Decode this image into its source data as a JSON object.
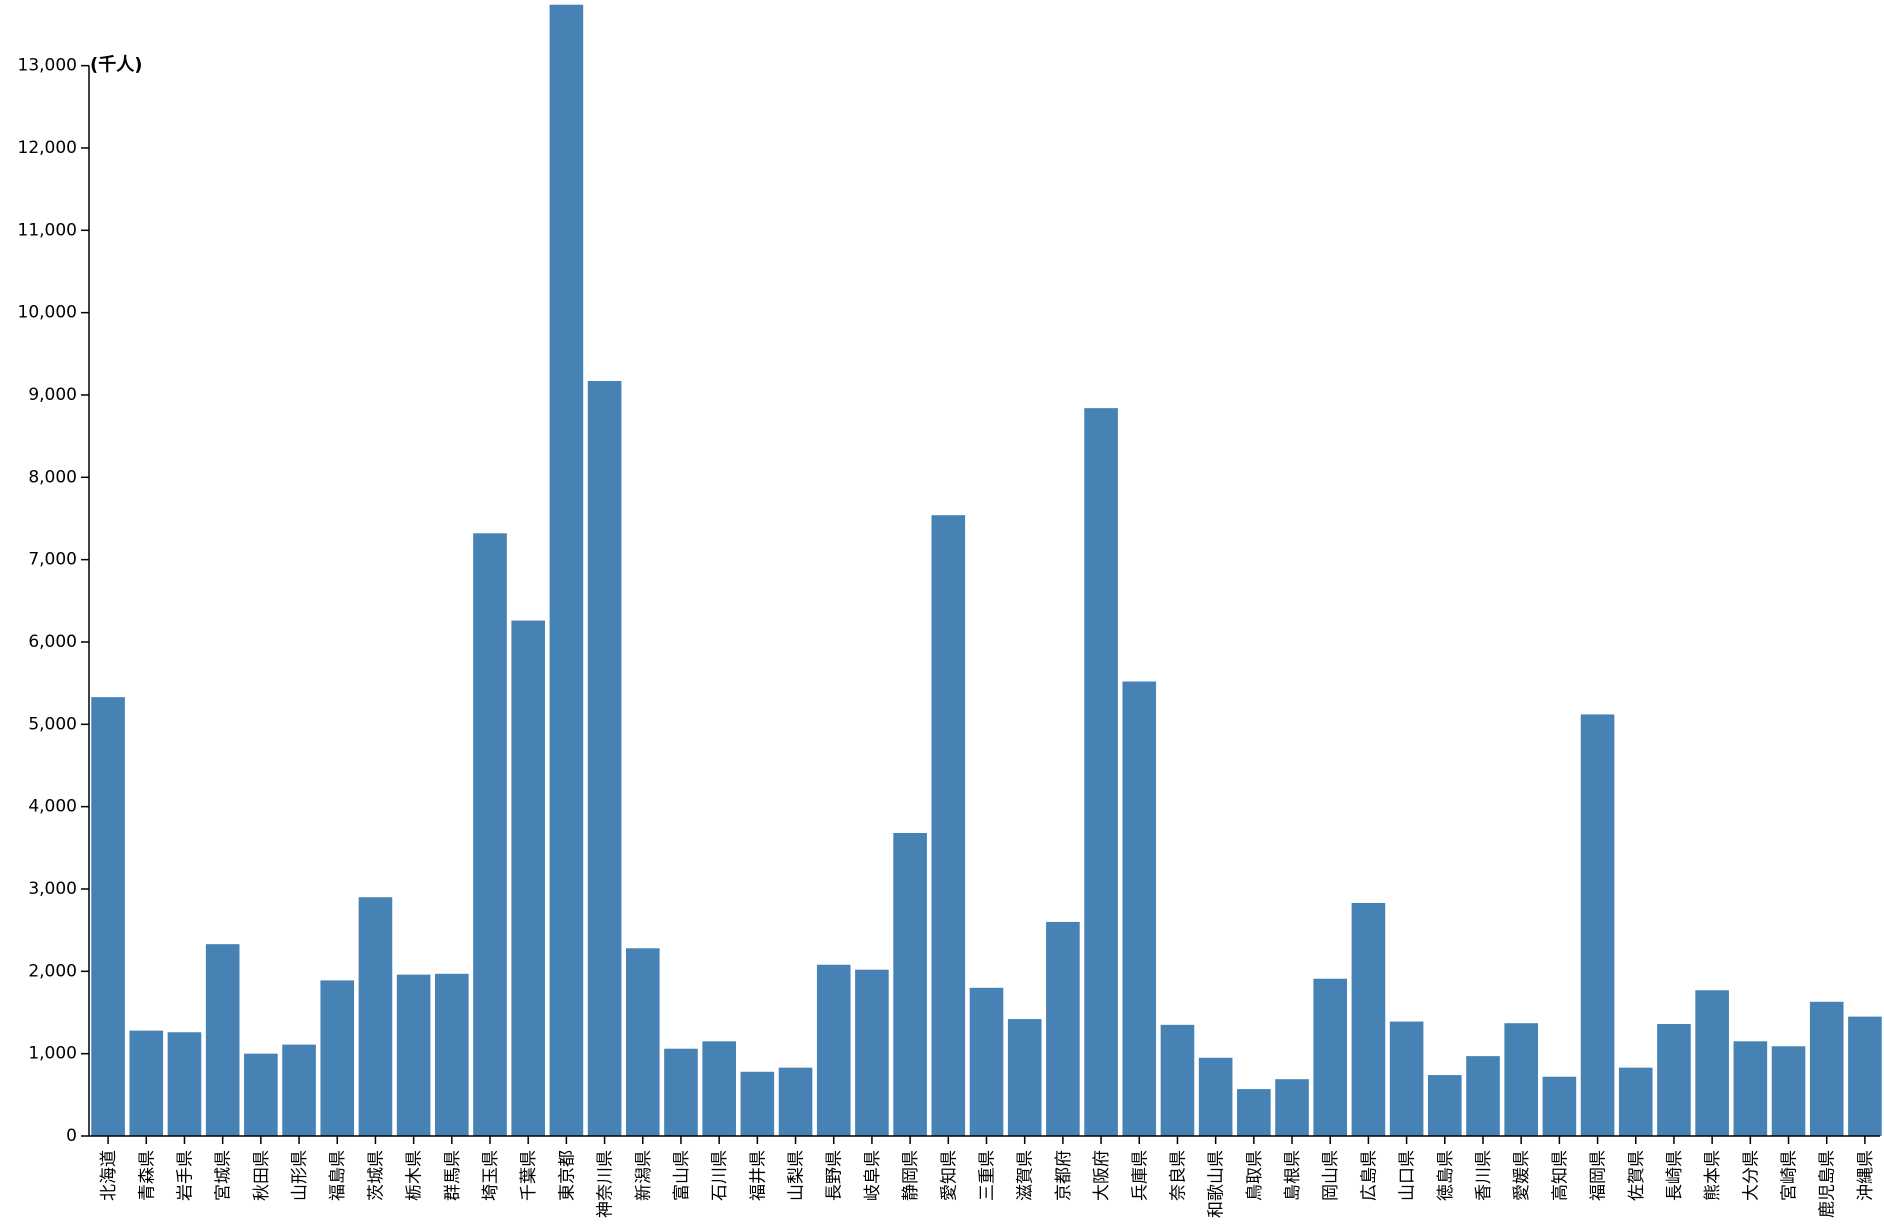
{
  "chart_data": {
    "type": "bar",
    "title": "",
    "xlabel": "",
    "ylabel": "",
    "unit_label": "(千人)",
    "ylim": [
      0,
      13700
    ],
    "yticks": [
      0,
      1000,
      2000,
      3000,
      4000,
      5000,
      6000,
      7000,
      8000,
      9000,
      10000,
      11000,
      12000,
      13000
    ],
    "ytick_labels": [
      "0",
      "1,000",
      "2,000",
      "3,000",
      "4,000",
      "5,000",
      "6,000",
      "7,000",
      "8,000",
      "9,000",
      "10,000",
      "11,000",
      "12,000",
      "13,000"
    ],
    "bar_color": "#4682b4",
    "categories": [
      "北海道",
      "青森県",
      "岩手県",
      "宮城県",
      "秋田県",
      "山形県",
      "福島県",
      "茨城県",
      "栃木県",
      "群馬県",
      "埼玉県",
      "千葉県",
      "東京都",
      "神奈川県",
      "新潟県",
      "富山県",
      "石川県",
      "福井県",
      "山梨県",
      "長野県",
      "岐阜県",
      "静岡県",
      "愛知県",
      "三重県",
      "滋賀県",
      "京都府",
      "大阪府",
      "兵庫県",
      "奈良県",
      "和歌山県",
      "鳥取県",
      "島根県",
      "岡山県",
      "広島県",
      "山口県",
      "徳島県",
      "香川県",
      "愛媛県",
      "高知県",
      "福岡県",
      "佐賀県",
      "長崎県",
      "熊本県",
      "大分県",
      "宮崎県",
      "鹿児島県",
      "沖縄県"
    ],
    "values": [
      5330,
      1280,
      1260,
      2330,
      1000,
      1110,
      1890,
      2900,
      1960,
      1970,
      7320,
      6260,
      13740,
      9170,
      2280,
      1060,
      1150,
      780,
      830,
      2080,
      2020,
      3680,
      7540,
      1800,
      1420,
      2600,
      8840,
      5520,
      1350,
      950,
      570,
      690,
      1910,
      2830,
      1390,
      740,
      970,
      1370,
      720,
      5120,
      830,
      1360,
      1770,
      1150,
      1090,
      1630,
      1450
    ]
  }
}
